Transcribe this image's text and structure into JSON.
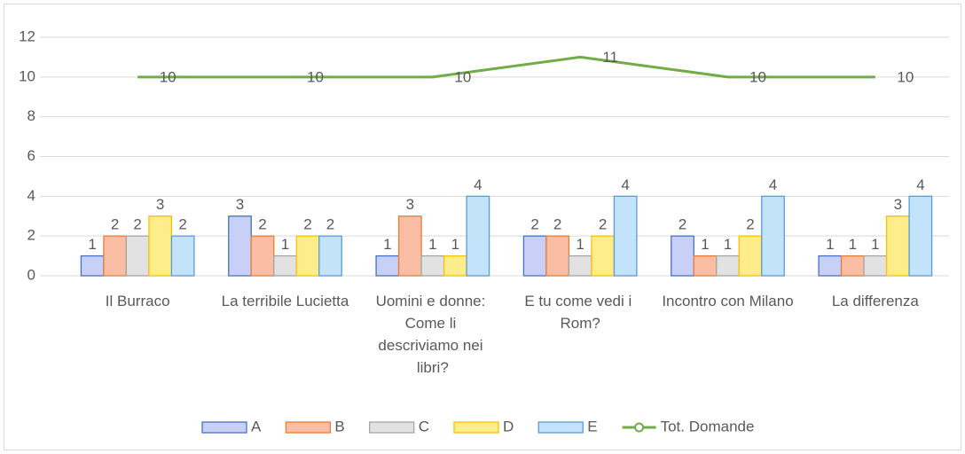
{
  "chart_data": {
    "type": "bar",
    "categories": [
      "Il Burraco",
      "La terribile Lucietta",
      "Uomini e donne: Come li descriviamo nei libri?",
      "E tu come vedi i Rom?",
      "Incontro con Milano",
      "La differenza"
    ],
    "series": [
      {
        "name": "A",
        "color": "#c9d0f7",
        "border": "#4472c4",
        "values": [
          1,
          3,
          1,
          2,
          2,
          1
        ]
      },
      {
        "name": "B",
        "color": "#f9bea3",
        "border": "#ed7d31",
        "values": [
          2,
          2,
          3,
          2,
          1,
          1
        ]
      },
      {
        "name": "C",
        "color": "#e2e2e2",
        "border": "#a5a5a5",
        "values": [
          2,
          1,
          1,
          1,
          1,
          1
        ]
      },
      {
        "name": "D",
        "color": "#ffec8a",
        "border": "#ffc000",
        "values": [
          3,
          2,
          1,
          2,
          2,
          3
        ]
      },
      {
        "name": "E",
        "color": "#c2e3f9",
        "border": "#5b9bd5",
        "values": [
          2,
          2,
          4,
          4,
          4,
          4
        ]
      },
      {
        "name": "Tot. Domande",
        "type": "line",
        "color": "#70ad47",
        "values": [
          10,
          10,
          10,
          11,
          10,
          10
        ]
      }
    ],
    "ylim": [
      0,
      12
    ],
    "yticks": [
      0,
      2,
      4,
      6,
      8,
      10,
      12
    ],
    "grid": true,
    "legend": "bottom"
  }
}
